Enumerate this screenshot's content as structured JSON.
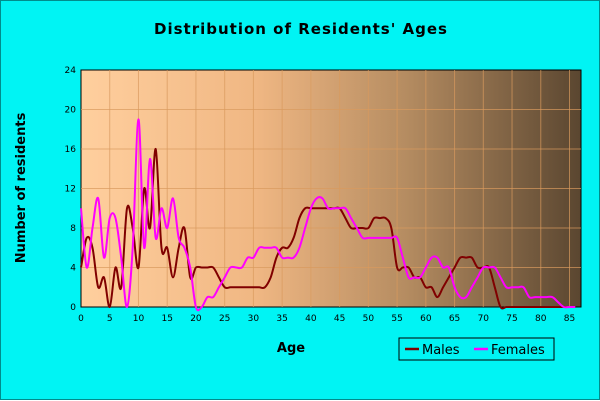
{
  "chart_data": {
    "type": "line",
    "title": "Distribution of Residents' Ages",
    "xlabel": "Age",
    "ylabel": "Number of residents",
    "xlim": [
      0,
      87
    ],
    "ylim": [
      0,
      24
    ],
    "x_ticks": [
      0,
      5,
      10,
      15,
      20,
      25,
      30,
      35,
      40,
      45,
      50,
      55,
      60,
      65,
      70,
      75,
      80,
      85
    ],
    "y_ticks": [
      0,
      4,
      8,
      12,
      16,
      20,
      24
    ],
    "grid": true,
    "legend_position": "bottom-right",
    "series": [
      {
        "name": "Males",
        "color": "#800000",
        "x": [
          0,
          1,
          2,
          3,
          4,
          5,
          6,
          7,
          8,
          9,
          10,
          11,
          12,
          13,
          14,
          15,
          16,
          17,
          18,
          19,
          20,
          21,
          22,
          23,
          24,
          25,
          26,
          27,
          28,
          29,
          30,
          31,
          32,
          33,
          34,
          35,
          36,
          37,
          38,
          39,
          40,
          41,
          42,
          43,
          44,
          45,
          46,
          47,
          48,
          49,
          50,
          51,
          52,
          53,
          54,
          55,
          56,
          57,
          58,
          59,
          60,
          61,
          62,
          63,
          64,
          65,
          66,
          67,
          68,
          69,
          70,
          71,
          72,
          73,
          74,
          75,
          76,
          77,
          78,
          79,
          80,
          81,
          82,
          83,
          84,
          85,
          86
        ],
        "values": [
          4,
          7,
          6,
          2,
          3,
          0,
          4,
          2,
          10,
          8,
          4,
          12,
          8,
          16,
          6,
          6,
          3,
          6,
          8,
          3,
          4,
          4,
          4,
          4,
          3,
          2,
          2,
          2,
          2,
          2,
          2,
          2,
          2,
          3,
          5,
          6,
          6,
          7,
          9,
          10,
          10,
          10,
          10,
          10,
          10,
          10,
          9,
          8,
          8,
          8,
          8,
          9,
          9,
          9,
          8,
          4,
          4,
          4,
          3,
          3,
          2,
          2,
          1,
          2,
          3,
          4,
          5,
          5,
          5,
          4,
          4,
          4,
          2,
          0,
          0,
          0,
          0,
          0,
          0,
          0,
          0,
          0,
          0,
          0,
          0,
          0,
          0
        ]
      },
      {
        "name": "Females",
        "color": "#ff00ff",
        "x": [
          0,
          1,
          2,
          3,
          4,
          5,
          6,
          7,
          8,
          9,
          10,
          11,
          12,
          13,
          14,
          15,
          16,
          17,
          18,
          19,
          20,
          21,
          22,
          23,
          24,
          25,
          26,
          27,
          28,
          29,
          30,
          31,
          32,
          33,
          34,
          35,
          36,
          37,
          38,
          39,
          40,
          41,
          42,
          43,
          44,
          45,
          46,
          47,
          48,
          49,
          50,
          51,
          52,
          53,
          54,
          55,
          56,
          57,
          58,
          59,
          60,
          61,
          62,
          63,
          64,
          65,
          66,
          67,
          68,
          69,
          70,
          71,
          72,
          73,
          74,
          75,
          76,
          77,
          78,
          79,
          80,
          81,
          82,
          83,
          84,
          85,
          86
        ],
        "values": [
          10,
          4,
          8,
          11,
          5,
          9,
          9,
          5,
          0,
          6,
          19,
          6,
          15,
          7,
          10,
          8,
          11,
          7,
          6,
          4,
          0,
          0,
          1,
          1,
          2,
          3,
          4,
          4,
          4,
          5,
          5,
          6,
          6,
          6,
          6,
          5,
          5,
          5,
          6,
          8,
          10,
          11,
          11,
          10,
          10,
          10,
          10,
          9,
          8,
          7,
          7,
          7,
          7,
          7,
          7,
          7,
          5,
          3,
          3,
          3,
          4,
          5,
          5,
          4,
          4,
          2,
          1,
          1,
          2,
          3,
          4,
          4,
          4,
          3,
          2,
          2,
          2,
          2,
          1,
          1,
          1,
          1,
          1,
          0.5,
          0,
          0,
          0
        ]
      }
    ]
  }
}
